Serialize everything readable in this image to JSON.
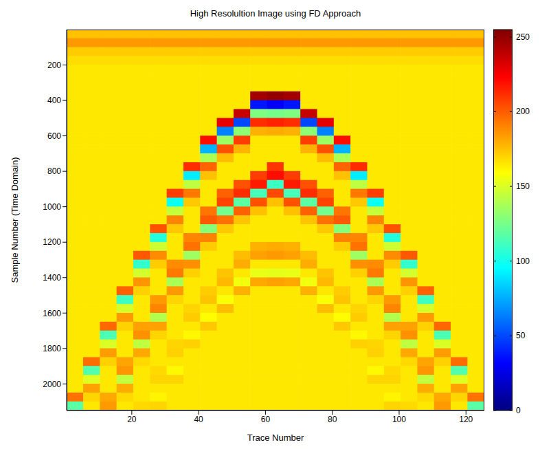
{
  "chart_data": {
    "type": "heatmap",
    "title": "High Resolultion Image using FD Approach",
    "x_label": "Trace Number",
    "y_label": "Sample Number (Time Domain)",
    "xlim": [
      0.5,
      125.5
    ],
    "ylim": [
      0,
      2150
    ],
    "xticks": [
      20,
      40,
      60,
      80,
      100,
      120
    ],
    "yticks": [
      200,
      400,
      600,
      800,
      1000,
      1200,
      1400,
      1600,
      1800,
      2000
    ],
    "colorbar": {
      "range": [
        0,
        255
      ],
      "ticks": [
        0,
        50,
        100,
        150,
        200,
        250
      ]
    },
    "x": [
      3,
      8,
      13,
      18,
      23,
      28,
      33,
      38,
      43,
      48,
      53,
      58,
      63,
      68,
      73,
      78,
      83,
      88,
      93,
      98,
      103,
      108,
      113,
      118,
      123
    ],
    "y": [
      25,
      75,
      125,
      175,
      225,
      275,
      325,
      375,
      425,
      475,
      525,
      575,
      625,
      675,
      725,
      775,
      825,
      875,
      925,
      975,
      1025,
      1075,
      1125,
      1175,
      1225,
      1275,
      1325,
      1375,
      1425,
      1475,
      1525,
      1575,
      1625,
      1675,
      1725,
      1775,
      1825,
      1875,
      1925,
      1975,
      2025,
      2075,
      2125
    ],
    "z": [
      [
        175,
        175,
        175,
        175,
        175,
        175,
        175,
        175,
        175,
        175,
        175,
        175,
        175,
        175,
        175,
        175,
        175,
        175,
        175,
        175,
        175,
        175,
        175,
        175,
        175
      ],
      [
        185,
        185,
        185,
        185,
        185,
        185,
        185,
        185,
        185,
        185,
        185,
        185,
        185,
        185,
        185,
        185,
        185,
        185,
        185,
        185,
        185,
        185,
        185,
        185,
        185
      ],
      [
        172,
        172,
        172,
        172,
        172,
        172,
        172,
        172,
        172,
        172,
        172,
        172,
        172,
        172,
        172,
        172,
        172,
        172,
        172,
        172,
        172,
        172,
        172,
        172,
        172
      ],
      [
        168,
        168,
        168,
        168,
        168,
        168,
        168,
        168,
        168,
        168,
        168,
        168,
        168,
        168,
        168,
        168,
        168,
        168,
        168,
        168,
        168,
        168,
        168,
        168,
        168
      ],
      [
        165,
        165,
        165,
        165,
        165,
        165,
        165,
        165,
        165,
        165,
        165,
        165,
        165,
        165,
        165,
        165,
        165,
        165,
        165,
        165,
        165,
        165,
        165,
        165,
        165
      ],
      [
        165,
        165,
        165,
        165,
        165,
        165,
        165,
        165,
        165,
        165,
        165,
        165,
        165,
        165,
        165,
        165,
        165,
        165,
        165,
        165,
        165,
        165,
        165,
        165,
        165
      ],
      [
        165,
        165,
        165,
        165,
        165,
        165,
        165,
        165,
        165,
        165,
        165,
        165,
        165,
        165,
        165,
        165,
        165,
        165,
        165,
        165,
        165,
        165,
        165,
        165,
        165
      ],
      [
        165,
        165,
        165,
        165,
        165,
        165,
        165,
        165,
        165,
        165,
        165,
        246,
        250,
        246,
        165,
        165,
        165,
        165,
        165,
        165,
        165,
        165,
        165,
        165,
        165
      ],
      [
        165,
        165,
        165,
        165,
        165,
        165,
        165,
        165,
        165,
        165,
        165,
        37,
        30,
        37,
        165,
        165,
        165,
        165,
        165,
        165,
        165,
        165,
        165,
        165,
        165
      ],
      [
        165,
        165,
        165,
        165,
        165,
        165,
        165,
        165,
        165,
        165,
        237,
        127,
        125,
        127,
        237,
        165,
        165,
        165,
        165,
        165,
        165,
        165,
        165,
        165,
        165
      ],
      [
        165,
        165,
        165,
        165,
        165,
        165,
        165,
        165,
        165,
        229,
        50,
        212,
        215,
        212,
        50,
        229,
        165,
        165,
        165,
        165,
        165,
        165,
        165,
        165,
        165
      ],
      [
        165,
        165,
        165,
        165,
        165,
        165,
        165,
        165,
        165,
        64,
        131,
        179,
        180,
        179,
        131,
        64,
        165,
        165,
        165,
        165,
        165,
        165,
        165,
        165,
        165
      ],
      [
        165,
        165,
        165,
        165,
        165,
        165,
        165,
        165,
        220,
        135,
        208,
        165,
        165,
        165,
        208,
        135,
        220,
        165,
        165,
        165,
        165,
        165,
        165,
        165,
        165
      ],
      [
        165,
        165,
        165,
        165,
        165,
        165,
        165,
        165,
        77,
        203,
        178,
        165,
        165,
        165,
        178,
        203,
        77,
        165,
        165,
        165,
        165,
        165,
        165,
        165,
        165
      ],
      [
        165,
        165,
        165,
        165,
        165,
        165,
        165,
        165,
        139,
        176,
        165,
        165,
        165,
        165,
        165,
        176,
        139,
        165,
        165,
        165,
        165,
        165,
        165,
        165,
        165
      ],
      [
        165,
        165,
        165,
        165,
        165,
        165,
        165,
        212,
        198,
        165,
        165,
        165,
        210,
        165,
        165,
        165,
        198,
        212,
        165,
        165,
        165,
        165,
        165,
        165,
        165
      ],
      [
        165,
        165,
        165,
        165,
        165,
        165,
        165,
        91,
        175,
        165,
        165,
        208,
        220,
        208,
        165,
        165,
        175,
        91,
        165,
        165,
        165,
        165,
        165,
        165,
        165
      ],
      [
        165,
        165,
        165,
        165,
        165,
        165,
        165,
        143,
        165,
        165,
        203,
        217,
        110,
        217,
        203,
        165,
        165,
        143,
        165,
        165,
        165,
        165,
        165,
        165,
        165
      ],
      [
        165,
        165,
        165,
        165,
        165,
        165,
        208,
        193,
        165,
        199,
        212,
        113,
        205,
        113,
        212,
        199,
        165,
        193,
        208,
        165,
        165,
        165,
        165,
        165,
        165
      ],
      [
        165,
        165,
        165,
        165,
        165,
        165,
        98,
        173,
        165,
        206,
        118,
        203,
        175,
        203,
        118,
        206,
        165,
        173,
        98,
        165,
        165,
        165,
        165,
        165,
        165
      ],
      [
        165,
        165,
        165,
        165,
        165,
        165,
        145,
        165,
        194,
        124,
        199,
        175,
        165,
        175,
        199,
        124,
        194,
        165,
        145,
        165,
        165,
        165,
        165,
        165,
        165
      ],
      [
        165,
        165,
        165,
        165,
        165,
        165,
        190,
        165,
        201,
        195,
        174,
        165,
        165,
        165,
        174,
        195,
        201,
        165,
        190,
        165,
        165,
        165,
        165,
        165,
        165
      ],
      [
        165,
        165,
        165,
        165,
        165,
        203,
        173,
        165,
        129,
        173,
        165,
        165,
        165,
        165,
        165,
        173,
        129,
        165,
        173,
        203,
        165,
        165,
        165,
        165,
        165
      ],
      [
        165,
        165,
        165,
        165,
        165,
        104,
        165,
        190,
        191,
        165,
        165,
        165,
        165,
        165,
        165,
        165,
        191,
        190,
        165,
        104,
        165,
        165,
        165,
        165,
        165
      ],
      [
        165,
        165,
        165,
        165,
        165,
        147,
        165,
        195,
        172,
        165,
        165,
        179,
        180,
        179,
        165,
        165,
        172,
        195,
        165,
        147,
        165,
        165,
        165,
        165,
        165
      ],
      [
        165,
        165,
        165,
        165,
        201,
        188,
        165,
        135,
        165,
        165,
        176,
        183,
        185,
        183,
        176,
        165,
        165,
        135,
        165,
        188,
        201,
        165,
        165,
        165,
        165
      ],
      [
        165,
        165,
        165,
        165,
        108,
        172,
        188,
        187,
        165,
        165,
        180,
        165,
        165,
        165,
        180,
        165,
        165,
        187,
        188,
        172,
        108,
        165,
        165,
        165,
        165
      ],
      [
        165,
        165,
        165,
        165,
        148,
        165,
        193,
        171,
        165,
        174,
        165,
        154,
        153,
        154,
        165,
        174,
        165,
        171,
        193,
        165,
        148,
        165,
        165,
        165,
        165
      ],
      [
        165,
        165,
        165,
        165,
        186,
        165,
        138,
        165,
        165,
        177,
        156,
        181,
        183,
        181,
        156,
        177,
        165,
        165,
        138,
        165,
        186,
        165,
        165,
        165,
        165
      ],
      [
        165,
        165,
        165,
        199,
        171,
        165,
        185,
        165,
        172,
        165,
        179,
        165,
        165,
        165,
        179,
        165,
        172,
        165,
        185,
        165,
        171,
        199,
        165,
        165,
        165
      ],
      [
        165,
        165,
        165,
        111,
        165,
        185,
        170,
        165,
        174,
        158,
        165,
        165,
        165,
        165,
        165,
        158,
        174,
        165,
        170,
        185,
        165,
        111,
        165,
        165,
        165
      ],
      [
        165,
        165,
        165,
        149,
        165,
        190,
        165,
        170,
        165,
        176,
        165,
        165,
        165,
        165,
        165,
        176,
        165,
        170,
        165,
        190,
        165,
        149,
        165,
        165,
        165
      ],
      [
        165,
        165,
        165,
        185,
        165,
        140,
        165,
        172,
        160,
        165,
        165,
        165,
        165,
        165,
        165,
        165,
        160,
        172,
        165,
        140,
        165,
        185,
        165,
        165,
        165
      ],
      [
        165,
        165,
        197,
        171,
        183,
        183,
        165,
        165,
        173,
        165,
        165,
        165,
        165,
        165,
        165,
        165,
        173,
        165,
        165,
        183,
        183,
        171,
        197,
        165,
        165
      ],
      [
        165,
        165,
        114,
        165,
        187,
        170,
        165,
        161,
        165,
        165,
        165,
        165,
        165,
        165,
        165,
        165,
        165,
        161,
        165,
        170,
        187,
        165,
        114,
        165,
        165
      ],
      [
        165,
        165,
        150,
        165,
        143,
        165,
        170,
        171,
        165,
        165,
        165,
        165,
        165,
        165,
        165,
        165,
        165,
        171,
        170,
        165,
        143,
        165,
        150,
        165,
        165
      ],
      [
        165,
        165,
        184,
        165,
        181,
        165,
        171,
        165,
        165,
        165,
        165,
        165,
        165,
        165,
        165,
        165,
        165,
        165,
        171,
        165,
        181,
        165,
        184,
        165,
        165
      ],
      [
        165,
        196,
        171,
        182,
        169,
        165,
        165,
        165,
        165,
        165,
        165,
        165,
        165,
        165,
        165,
        165,
        165,
        165,
        165,
        165,
        169,
        182,
        171,
        196,
        165
      ],
      [
        165,
        116,
        165,
        186,
        165,
        169,
        161,
        165,
        165,
        165,
        165,
        165,
        165,
        165,
        165,
        165,
        165,
        165,
        161,
        169,
        165,
        186,
        165,
        116,
        165
      ],
      [
        165,
        151,
        165,
        144,
        165,
        170,
        170,
        165,
        165,
        165,
        165,
        165,
        165,
        165,
        165,
        165,
        165,
        165,
        170,
        170,
        165,
        144,
        165,
        151,
        165
      ],
      [
        165,
        183,
        165,
        180,
        165,
        165,
        165,
        165,
        165,
        165,
        165,
        165,
        165,
        165,
        165,
        165,
        165,
        165,
        165,
        165,
        165,
        180,
        165,
        183,
        165
      ],
      [
        195,
        170,
        181,
        169,
        165,
        162,
        165,
        165,
        165,
        165,
        165,
        165,
        165,
        165,
        165,
        165,
        165,
        165,
        165,
        162,
        165,
        169,
        181,
        170,
        195
      ],
      [
        118,
        165,
        185,
        165,
        169,
        170,
        165,
        165,
        165,
        165,
        165,
        165,
        165,
        165,
        165,
        165,
        165,
        165,
        165,
        170,
        169,
        165,
        185,
        165,
        118
      ]
    ]
  }
}
